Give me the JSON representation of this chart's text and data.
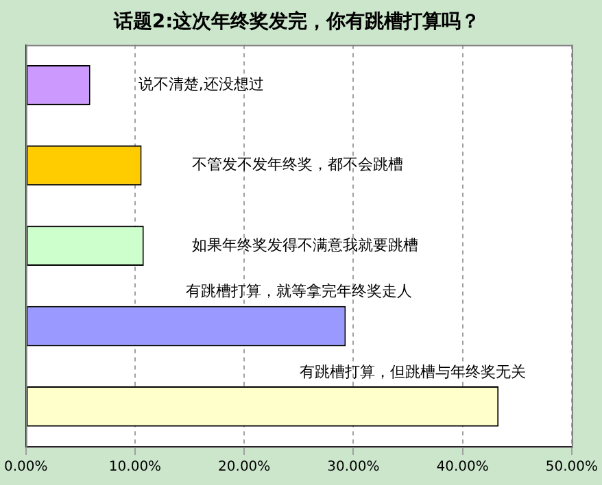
{
  "chart_data": {
    "type": "bar",
    "orientation": "horizontal",
    "title": "话题2:这次年终奖发完，你有跳槽打算吗？",
    "categories": [
      "说不清楚,还没想过",
      "不管发不发年终奖，都不会跳槽",
      "如果年终奖发得不满意我就要跳槽",
      "有跳槽打算，就等拿完年终奖走人",
      "有跳槽打算，但跳槽与年终奖无关"
    ],
    "values": [
      5.9,
      10.6,
      10.8,
      29.3,
      43.3
    ],
    "colors": [
      "#cc99ff",
      "#ffcc00",
      "#ccffcc",
      "#9999ff",
      "#ffffcc"
    ],
    "xlim": [
      0,
      50
    ],
    "xticks": [
      {
        "value": 0,
        "label": "0.00%"
      },
      {
        "value": 10,
        "label": "10.00%"
      },
      {
        "value": 20,
        "label": "20.00%"
      },
      {
        "value": 30,
        "label": "30.00%"
      },
      {
        "value": 40,
        "label": "40.00%"
      },
      {
        "value": 50,
        "label": "50.00%"
      }
    ],
    "grid": "x",
    "legend": false,
    "tick_labels": "x"
  }
}
